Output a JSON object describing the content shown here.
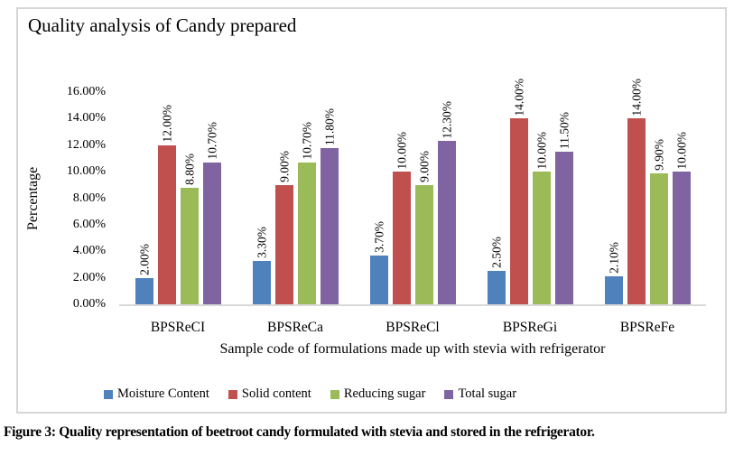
{
  "figure": {
    "caption": "Figure 3: Quality representation of beetroot candy formulated with stevia and stored in the refrigerator."
  },
  "chart_data": {
    "type": "bar",
    "title": "Quality analysis of Candy prepared",
    "xlabel": "Sample code of formulations made up with stevia with refrigerator",
    "ylabel": "Percentage",
    "ylim": [
      0,
      16
    ],
    "ytick_step": 2,
    "ytick_labels": [
      "0.00%",
      "2.00%",
      "4.00%",
      "6.00%",
      "8.00%",
      "10.00%",
      "12.00%",
      "14.00%",
      "16.00%"
    ],
    "grid": false,
    "legend_position": "bottom",
    "categories": [
      "BPSReCI",
      "BPSReCa",
      "BPSReCl",
      "BPSReGi",
      "BPSReFe"
    ],
    "series": [
      {
        "name": "Moisture Content",
        "color": "#4F81BD",
        "values": [
          2.0,
          3.3,
          3.7,
          2.5,
          2.1
        ],
        "labels": [
          "2.00%",
          "3.30%",
          "3.70%",
          "2.50%",
          "2.10%"
        ]
      },
      {
        "name": "Solid content",
        "color": "#C0504D",
        "values": [
          12.0,
          9.0,
          10.0,
          14.0,
          14.0
        ],
        "labels": [
          "12.00%",
          "9.00%",
          "10.00%",
          "14.00%",
          "14.00%"
        ]
      },
      {
        "name": "Reducing sugar",
        "color": "#9BBB59",
        "values": [
          8.8,
          10.7,
          9.0,
          10.0,
          9.9
        ],
        "labels": [
          "8.80%",
          "10.70%",
          "9.00%",
          "10.00%",
          "9.90%"
        ]
      },
      {
        "name": "Total sugar",
        "color": "#8064A2",
        "values": [
          10.7,
          11.8,
          12.3,
          11.5,
          10.0
        ],
        "labels": [
          "10.70%",
          "11.80%",
          "12.30%",
          "11.50%",
          "10.00%"
        ]
      }
    ],
    "axis_line_color": "#D9D9D9",
    "box_border_color": "#D6D6D6"
  }
}
